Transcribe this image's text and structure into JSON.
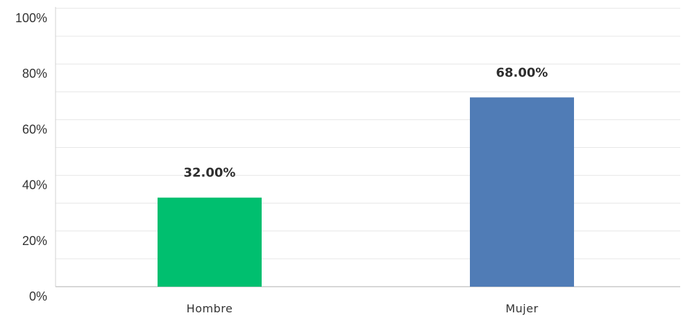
{
  "chart_data": {
    "type": "bar",
    "categories": [
      "Hombre",
      "Mujer"
    ],
    "values": [
      32.0,
      68.0
    ],
    "data_labels": [
      "32.00%",
      "68.00%"
    ],
    "bar_colors": [
      "#00bf6f",
      "#507cb6"
    ],
    "ylim": [
      0,
      100
    ],
    "yticks": [
      0,
      20,
      40,
      60,
      80,
      100
    ],
    "ytick_labels": [
      "0%",
      "20%",
      "40%",
      "60%",
      "80%",
      "100%"
    ],
    "minor_gridlines": true,
    "grid": true,
    "title": "",
    "xlabel": "",
    "ylabel": ""
  }
}
